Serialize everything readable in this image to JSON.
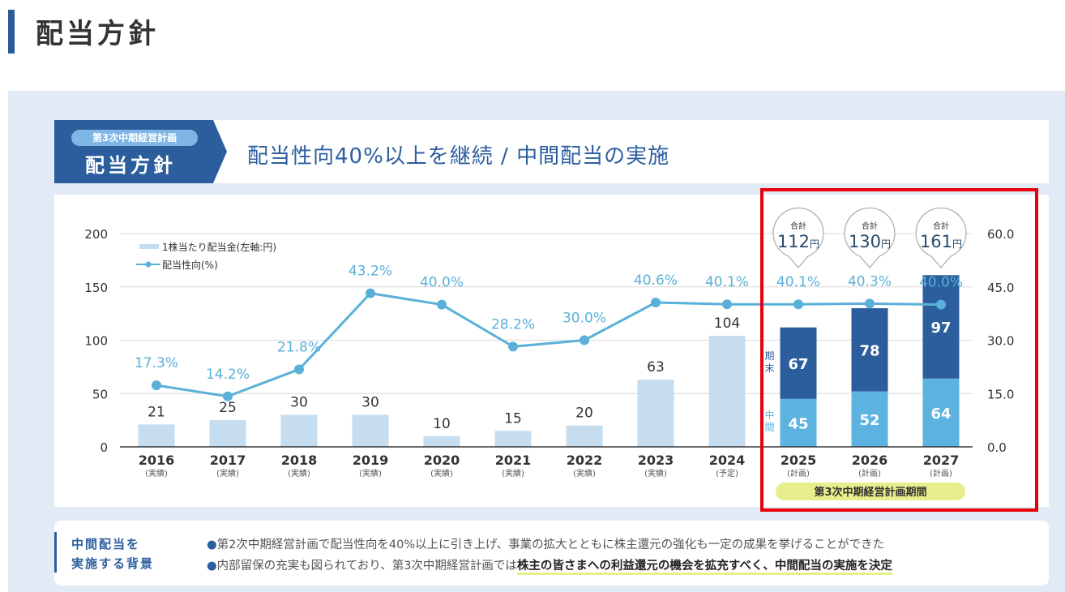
{
  "page_title": "配当方針",
  "banner": {
    "plan_tag": "第3次中期経営計画",
    "label": "配当方針",
    "headline": "配当性向40%以上を継続 / 中間配当の実施"
  },
  "colors": {
    "bar_actual": "#c6dcef",
    "bar_interim": "#5cb3e0",
    "bar_final": "#2c5e9e",
    "line": "#5ab0d8",
    "highlight_box": "#e8000b",
    "period_badge": "#e6ef8c"
  },
  "chart_data": {
    "type": "bar",
    "categories": [
      "2016",
      "2017",
      "2018",
      "2019",
      "2020",
      "2021",
      "2022",
      "2023",
      "2024",
      "2025",
      "2026",
      "2027"
    ],
    "category_notes": [
      "(実績)",
      "(実績)",
      "(実績)",
      "(実績)",
      "(実績)",
      "(実績)",
      "(実績)",
      "(実績)",
      "(予定)",
      "(計画)",
      "(計画)",
      "(計画)"
    ],
    "legend": [
      "1株当たり配当金(左軸:円)",
      "配当性向(%)"
    ],
    "legend_position": "top-left",
    "left_axis": {
      "ylim": [
        0,
        200
      ],
      "ticks": [
        "0",
        "50",
        "100",
        "150",
        "200"
      ]
    },
    "right_axis": {
      "ylim": [
        0,
        60
      ],
      "ticks": [
        "0.0",
        "15.0",
        "30.0",
        "45.0",
        "60.0"
      ]
    },
    "dividend_per_share": [
      21,
      25,
      30,
      30,
      10,
      15,
      20,
      63,
      104,
      null,
      null,
      null
    ],
    "dividend_labels": [
      "21",
      "25",
      "30",
      "30",
      "10",
      "15",
      "20",
      "63",
      "104",
      "",
      "",
      ""
    ],
    "series": [
      {
        "name": "中間",
        "values": [
          null,
          null,
          null,
          null,
          null,
          null,
          null,
          null,
          null,
          45,
          52,
          64
        ]
      },
      {
        "name": "期末",
        "values": [
          null,
          null,
          null,
          null,
          null,
          null,
          null,
          null,
          null,
          67,
          78,
          97
        ]
      }
    ],
    "payout_ratio": [
      17.3,
      14.2,
      21.8,
      43.2,
      40.0,
      28.2,
      30.0,
      40.6,
      40.1,
      40.1,
      40.3,
      40.0
    ],
    "payout_labels": [
      "17.3%",
      "14.2%",
      "21.8%",
      "43.2%",
      "40.0%",
      "28.2%",
      "30.0%",
      "40.6%",
      "40.1%",
      "40.1%",
      "40.3%",
      "40.0%"
    ],
    "stack_labels": {
      "interim": "中間",
      "final": "期末"
    },
    "totals": [
      {
        "caption": "合計",
        "value": "112",
        "unit": "円"
      },
      {
        "caption": "合計",
        "value": "130",
        "unit": "円"
      },
      {
        "caption": "合計",
        "value": "161",
        "unit": "円"
      }
    ],
    "period_badge": "第3次中期経営計画期間"
  },
  "background": {
    "heading": [
      "中間配当を",
      "実施する背景"
    ],
    "line1": "第2次中期経営計画で配当性向を40%以上に引き上げ、事業の拡大とともに株主還元の強化も一定の成果を挙げることができた",
    "line2_plain": "内部留保の充実も図られており、第3次中期経営計画では",
    "line2_emphasis": "株主の皆さまへの利益還元の機会を拡充すべく、中間配当の実施を決定",
    "bullet": "●"
  }
}
